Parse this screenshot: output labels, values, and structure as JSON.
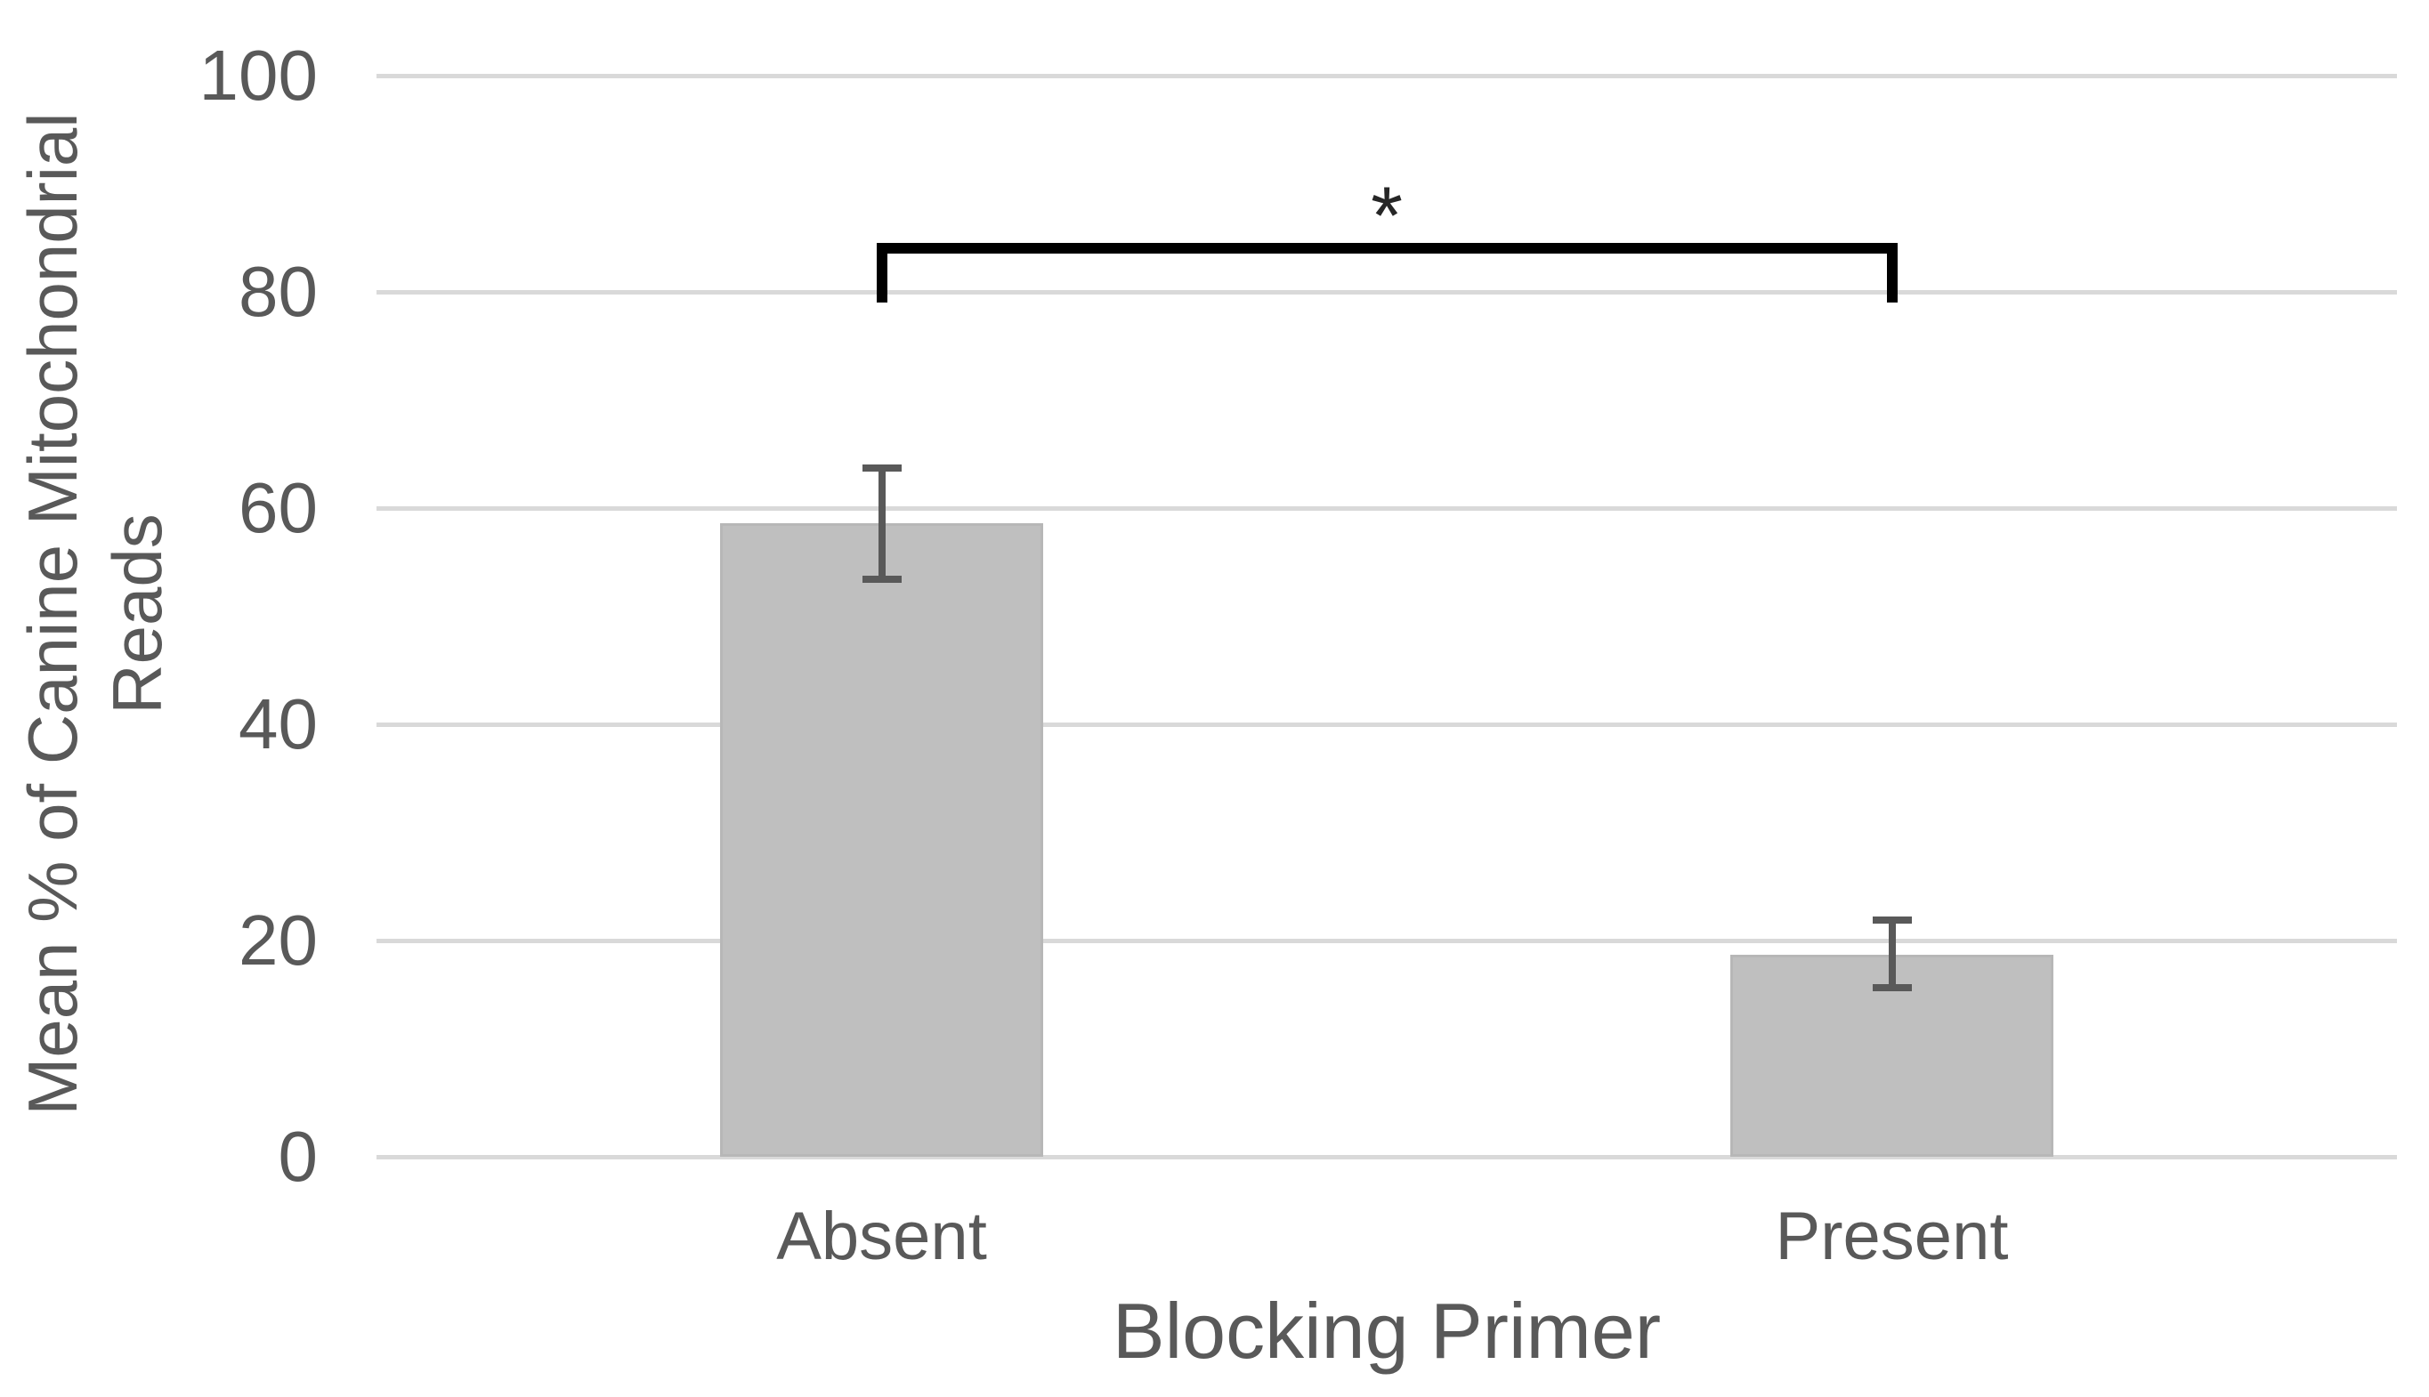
{
  "chart_data": {
    "type": "bar",
    "title": "",
    "xlabel": "Blocking Primer",
    "ylabel": "Mean % of Canine Mitochondrial Reads",
    "ylabel_lines": [
      "Mean % of Canine Mitochondrial",
      "Reads"
    ],
    "categories": [
      "Absent",
      "Present"
    ],
    "values": [
      58.6,
      18.7
    ],
    "error_low": [
      53.4,
      15.6
    ],
    "error_high": [
      63.7,
      21.9
    ],
    "ylim": [
      0,
      100
    ],
    "yticks": [
      0,
      20,
      40,
      60,
      80,
      100
    ],
    "grid": "horizontal",
    "legend": "none",
    "significance": {
      "label": "*",
      "between": [
        0,
        1
      ],
      "bracket_top_value": 84.5,
      "bracket_leg_bottom_value": 79,
      "label_value": 88
    }
  },
  "colors": {
    "background": "#ffffff",
    "bar_fill": "#bfbfbf",
    "bar_border": "#b7b7b7",
    "error_bar": "#595959",
    "gridline": "#d9d9d9",
    "text": "#595959",
    "bracket": "#000000",
    "asterisk": "#262626"
  }
}
